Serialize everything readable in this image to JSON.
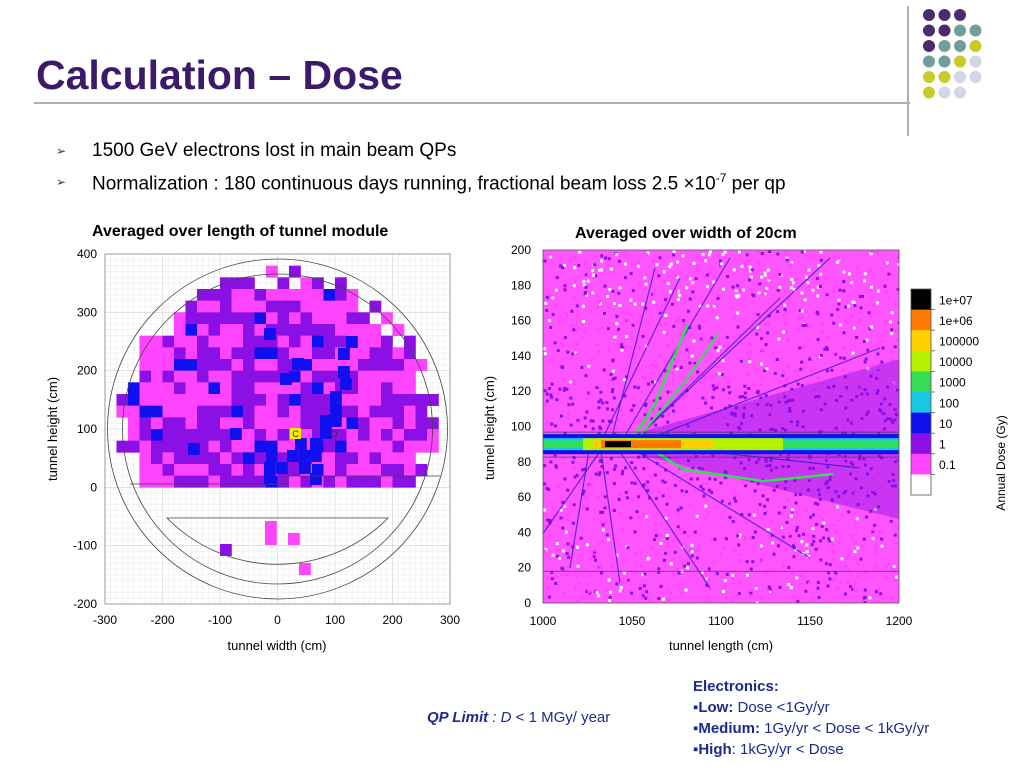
{
  "slide": {
    "title": "Calculation –  Dose",
    "bullets": [
      {
        "text": "1500 GeV electrons lost in main beam QPs"
      },
      {
        "text": "Normalization : 180 continuous days running, fractional beam loss 2.5 ",
        "times": "×",
        "base": "10",
        "exp": "-7",
        "tail": " per qp"
      }
    ],
    "left_caption": "Averaged over length of tunnel module",
    "right_caption": "Averaged over  width of 20cm",
    "qp_limit": {
      "label": "QP Limit",
      "sep": " : ",
      "var": "D",
      "rest": " < 1 MGy/ year"
    },
    "electronics": {
      "heading": "Electronics:",
      "items": [
        {
          "bullet": "▪",
          "label": "Low:",
          "text": "  Dose <1Gy/yr"
        },
        {
          "bullet": "▪",
          "label": "Medium:",
          "text": " 1Gy/yr < Dose < 1kGy/yr"
        },
        {
          "bullet": "▪",
          "label": "High",
          "text": ":  1kGy/yr < Dose"
        }
      ]
    },
    "accent_dots": {
      "colors": [
        "#4b2a6e",
        "#6f9f9b",
        "#c8cc2a",
        "#d5d5e8"
      ]
    }
  },
  "chart_data": [
    {
      "type": "heatmap",
      "xlabel": "tunnel width (cm)",
      "ylabel": "tunnel height (cm)",
      "xlim": [
        -300,
        300
      ],
      "ylim": [
        -200,
        400
      ],
      "xticks": [
        "-300",
        "-200",
        "-100",
        "0",
        "100",
        "200",
        "300"
      ],
      "yticks": [
        "400",
        "300",
        "200",
        "100",
        "0",
        "-100",
        "-200"
      ],
      "grid": true,
      "marker_label": "C"
    },
    {
      "type": "heatmap",
      "xlabel": "tunnel length (cm)",
      "ylabel": "tunnel height (cm)",
      "xlim": [
        1000,
        1200
      ],
      "ylim": [
        0,
        200
      ],
      "xticks": [
        "1000",
        "1050",
        "1100",
        "1150",
        "1200"
      ],
      "yticks": [
        "200",
        "180",
        "160",
        "140",
        "120",
        "100",
        "80",
        "60",
        "40",
        "20",
        "0"
      ],
      "colorbar": {
        "label": "Annual Dose (Gy)",
        "levels": [
          "1e+07",
          "1e+06",
          "100000",
          "10000",
          "1000",
          "100",
          "10",
          "1",
          "0.1"
        ],
        "colors": [
          "#000000",
          "#ff7a00",
          "#ffd000",
          "#b5f000",
          "#33dd55",
          "#18c8e0",
          "#1010ee",
          "#8a10e6",
          "#ff44ff",
          "#ffffff"
        ]
      }
    }
  ]
}
